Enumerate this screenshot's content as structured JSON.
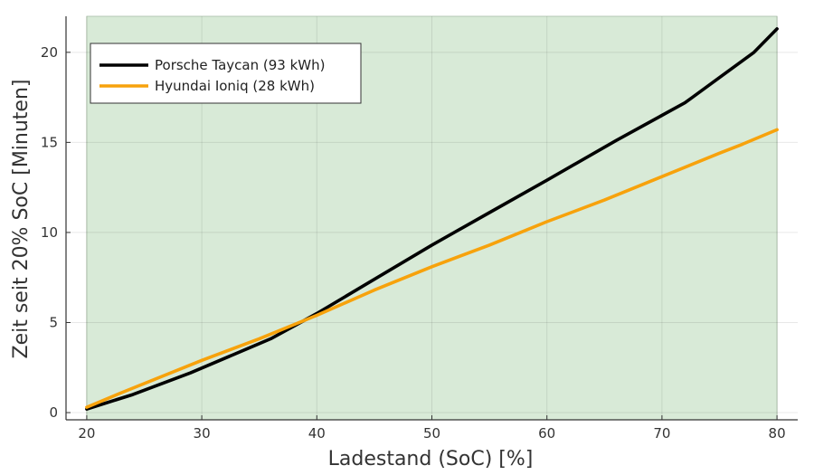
{
  "chart_data": {
    "type": "line",
    "xlabel": "Ladestand (SoC) [%]",
    "ylabel": "Zeit seit 20% SoC [Minuten]",
    "xlim": [
      18.2,
      81.8
    ],
    "ylim": [
      -0.4,
      22.0
    ],
    "x_ticks": [
      20,
      30,
      40,
      50,
      60,
      70,
      80
    ],
    "x_tick_labels": [
      "20",
      "30",
      "40",
      "50",
      "60",
      "70",
      "80"
    ],
    "y_ticks": [
      0,
      5,
      10,
      15,
      20
    ],
    "y_tick_labels": [
      "0",
      "5",
      "10",
      "15",
      "20"
    ],
    "grid": true,
    "legend_position": "top-left",
    "shaded_region": {
      "x_from": 20,
      "x_to": 80,
      "color": "#d8ead7"
    },
    "series": [
      {
        "name": "Porsche Taycan (93 kWh)",
        "color": "#000000",
        "points": [
          [
            20,
            0.2
          ],
          [
            24,
            1.0
          ],
          [
            29,
            2.2
          ],
          [
            36,
            4.1
          ],
          [
            40,
            5.5
          ],
          [
            45,
            7.4
          ],
          [
            50,
            9.3
          ],
          [
            55,
            11.1
          ],
          [
            60,
            12.9
          ],
          [
            66,
            15.1
          ],
          [
            70,
            16.5
          ],
          [
            72,
            17.2
          ],
          [
            75,
            18.6
          ],
          [
            78,
            20.0
          ],
          [
            80,
            21.3
          ]
        ]
      },
      {
        "name": "Hyundai Ioniq (28 kWh)",
        "color": "#f7a20c",
        "points": [
          [
            20,
            0.3
          ],
          [
            23,
            1.1
          ],
          [
            30,
            2.9
          ],
          [
            35,
            4.1
          ],
          [
            40,
            5.4
          ],
          [
            45,
            6.8
          ],
          [
            50,
            8.1
          ],
          [
            55,
            9.3
          ],
          [
            60,
            10.6
          ],
          [
            65,
            11.8
          ],
          [
            70,
            13.1
          ],
          [
            75,
            14.4
          ],
          [
            77,
            14.9
          ],
          [
            80,
            15.7
          ]
        ]
      }
    ]
  }
}
